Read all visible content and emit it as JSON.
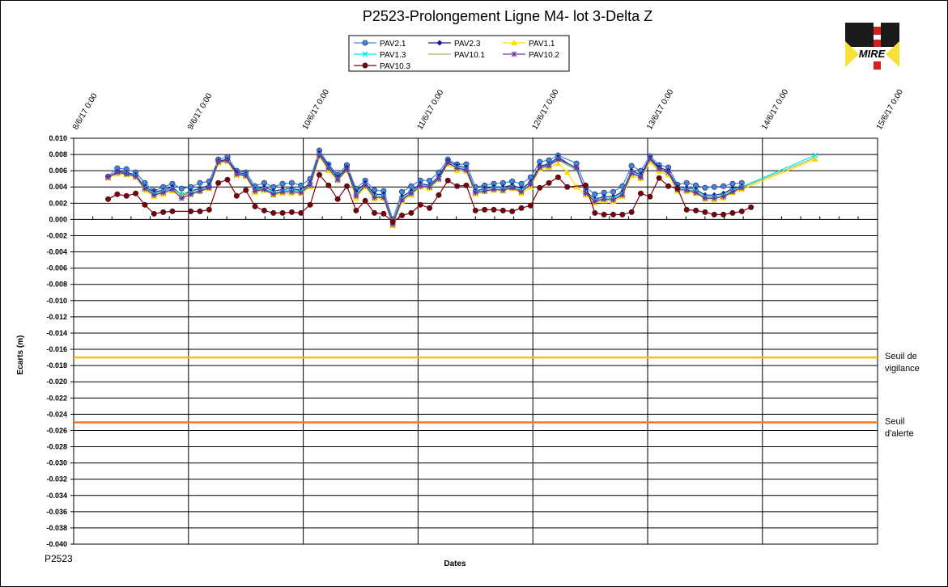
{
  "chart_data": {
    "type": "line",
    "title": "P2523-Prolongement  Ligne  M4- lot 3-Delta Z",
    "xlabel": "Dates",
    "ylabel": "Ecarts (m)",
    "footer_code": "P2523",
    "logo_text": "MIRE",
    "x_ticks": [
      "8/6/17 0:00",
      "9/6/17 0:00",
      "10/6/17 0:00",
      "11/6/17 0:00",
      "12/6/17 0:00",
      "13/6/17 0:00",
      "14/6/17 0:00",
      "15/6/17 0:00"
    ],
    "ylim": [
      -0.04,
      0.01
    ],
    "y_ticks": [
      "0.010",
      "0.008",
      "0.006",
      "0.004",
      "0.002",
      "0.000",
      "-0.002",
      "-0.004",
      "-0.006",
      "-0.008",
      "-0.010",
      "-0.012",
      "-0.014",
      "-0.016",
      "-0.018",
      "-0.020",
      "-0.022",
      "-0.024",
      "-0.026",
      "-0.028",
      "-0.030",
      "-0.032",
      "-0.034",
      "-0.036",
      "-0.038",
      "-0.040"
    ],
    "grid": true,
    "legend_position": "top-center",
    "x_day_offsets": [
      0.3,
      0.38,
      0.46,
      0.54,
      0.62,
      0.7,
      0.78,
      0.86,
      0.94,
      1.02,
      1.1,
      1.18,
      1.26,
      1.34,
      1.42,
      1.5,
      1.58,
      1.66,
      1.74,
      1.82,
      1.9,
      1.98,
      2.06,
      2.14,
      2.22,
      2.3,
      2.38,
      2.46,
      2.54,
      2.62,
      2.7,
      2.78,
      2.86,
      2.94,
      3.02,
      3.1,
      3.18,
      3.26,
      3.34,
      3.42,
      3.5,
      3.58,
      3.66,
      3.74,
      3.82,
      3.9,
      3.98,
      4.06,
      4.14,
      4.22,
      4.3,
      4.38,
      4.46,
      4.54,
      4.62,
      4.7,
      4.78,
      4.86,
      4.94,
      5.02,
      5.1,
      5.18,
      5.26,
      5.34,
      5.42,
      5.5,
      5.58,
      5.66,
      5.74,
      5.82,
      5.9,
      5.98,
      6.06,
      6.14,
      6.22,
      6.3,
      6.38,
      6.46
    ],
    "series": [
      {
        "name": "PAV2.1",
        "color": "#3f86e0",
        "marker": "circle",
        "values": [
          0.0053,
          0.0063,
          0.0062,
          0.0058,
          0.0045,
          0.0035,
          0.004,
          0.0044,
          0.0038,
          0.004,
          0.0045,
          0.0047,
          0.0074,
          0.0077,
          0.006,
          0.0058,
          0.0041,
          0.0045,
          0.004,
          0.0044,
          0.0045,
          0.0042,
          0.005,
          0.0085,
          0.0068,
          0.0055,
          0.0067,
          0.0038,
          0.0048,
          0.0036,
          0.0035,
          0.0,
          0.0034,
          0.0041,
          0.0048,
          0.0048,
          0.0058,
          0.0074,
          0.0068,
          0.0068,
          0.004,
          0.0042,
          0.0044,
          0.0045,
          0.0047,
          0.0044,
          0.0052,
          0.0071,
          0.0073,
          0.0079,
          null,
          0.0069,
          0.004,
          0.0031,
          0.0033,
          0.0034,
          0.0041,
          0.0066,
          0.006,
          0.0078,
          0.0067,
          0.0064,
          0.0043,
          0.0045,
          0.0042,
          0.0039,
          0.004,
          0.0041,
          0.0044,
          0.0045
        ]
      },
      {
        "name": "PAV2.3",
        "color": "#1a1a8c",
        "marker": "diamond",
        "values": [
          0.0052,
          0.0059,
          0.0058,
          0.0055,
          0.004,
          0.0034,
          0.0036,
          0.004,
          0.003,
          0.0035,
          0.0038,
          0.0042,
          0.0072,
          0.0074,
          0.0058,
          0.0056,
          0.0037,
          0.004,
          0.0035,
          0.0037,
          0.0038,
          0.0036,
          0.0045,
          0.0082,
          0.0066,
          0.0052,
          0.0064,
          0.0034,
          0.0045,
          0.0031,
          0.0031,
          -0.0004,
          0.0028,
          0.0035,
          0.0044,
          0.0042,
          0.0053,
          0.0072,
          0.0066,
          0.0064,
          0.0035,
          0.0038,
          0.004,
          0.004,
          0.0042,
          0.0038,
          0.0046,
          0.0066,
          0.0068,
          0.0077,
          null,
          0.0062,
          0.0035,
          0.0025,
          0.0028,
          0.0028,
          0.0034,
          0.006,
          0.0055,
          0.0076,
          0.0064,
          0.006,
          0.004,
          0.0039,
          0.0037,
          0.003,
          0.003,
          0.0032,
          0.0038,
          0.0041
        ]
      },
      {
        "name": "PAV1.1",
        "color": "#ffdd00",
        "marker": "triangle",
        "values": [
          0.0051,
          0.0056,
          0.0055,
          0.0052,
          0.0036,
          0.0028,
          0.0031,
          0.0035,
          0.0028,
          0.0031,
          0.0034,
          0.0038,
          0.0069,
          0.0071,
          0.0054,
          0.0053,
          0.0033,
          0.0036,
          0.003,
          0.0032,
          0.0032,
          0.0032,
          0.004,
          0.0077,
          0.006,
          0.0048,
          0.006,
          0.0026,
          0.004,
          0.0025,
          0.0026,
          -0.0008,
          0.0022,
          0.003,
          0.004,
          0.0038,
          0.0049,
          0.0068,
          0.006,
          0.0059,
          0.0031,
          0.0034,
          0.0036,
          0.0035,
          0.0038,
          0.0032,
          0.004,
          0.0062,
          0.0064,
          0.0069,
          0.0058,
          0.004,
          0.003,
          0.002,
          0.0023,
          0.0022,
          0.0028,
          0.0054,
          0.005,
          0.0071,
          0.0059,
          0.0055,
          0.0035,
          0.0034,
          0.0032,
          0.0025,
          0.0024,
          0.0026,
          0.0033,
          0.0037,
          null,
          null,
          null,
          null,
          null,
          null,
          null,
          0.0074
        ]
      },
      {
        "name": "PAV1.3",
        "color": "#00e5ee",
        "marker": "x",
        "values": [
          0.0052,
          0.0058,
          0.0057,
          0.0054,
          0.0039,
          0.0032,
          0.0035,
          0.0038,
          0.0031,
          0.0033,
          0.0036,
          0.004,
          0.0071,
          0.0073,
          0.0056,
          0.0055,
          0.0036,
          0.0038,
          0.0033,
          0.0035,
          0.0036,
          0.0035,
          0.0043,
          0.008,
          0.0064,
          0.005,
          0.0062,
          0.0031,
          0.0043,
          0.0029,
          0.0029,
          -0.0005,
          0.0026,
          0.0033,
          0.0042,
          0.0041,
          0.0051,
          0.007,
          0.0064,
          0.0062,
          0.0034,
          0.0036,
          0.0038,
          0.0038,
          0.004,
          0.0036,
          0.0044,
          0.0064,
          0.0067,
          0.0075,
          null,
          0.0062,
          0.0034,
          0.0024,
          0.0026,
          0.0026,
          0.0032,
          0.0058,
          0.0053,
          0.0074,
          0.0062,
          0.0058,
          0.0038,
          0.0037,
          0.0035,
          0.0028,
          0.0028,
          0.003,
          0.0036,
          0.004,
          null,
          null,
          null,
          null,
          null,
          null,
          null,
          0.0079
        ]
      },
      {
        "name": "PAV10.1",
        "color": "#9bbb59",
        "marker": "none",
        "values": [
          0.0052,
          0.0057,
          0.0056,
          0.0053,
          0.0038,
          0.0031,
          0.0034,
          0.0037,
          0.003,
          0.0032,
          0.0035,
          0.0039,
          0.007,
          0.0072,
          0.0055,
          0.0054,
          0.0035,
          0.0037,
          0.0032,
          0.0034,
          0.0035,
          0.0034,
          0.0042,
          0.0079,
          0.0063,
          0.0049,
          0.0061,
          0.003,
          0.0042,
          0.0028,
          0.0028,
          -0.0006,
          0.0025,
          0.0032,
          0.0041,
          0.004,
          0.005,
          0.0069,
          0.0063,
          0.0061,
          0.0033,
          0.0035,
          0.0037,
          0.0037,
          0.0039,
          0.0035,
          0.0043,
          0.0063,
          0.0066,
          0.0073,
          null,
          0.0061,
          0.0033,
          0.0023,
          0.0025,
          0.0025,
          0.0031,
          0.0057,
          0.0052,
          0.0073,
          0.0061,
          0.0057,
          0.0037,
          0.0036,
          0.0034,
          0.0027,
          0.0027,
          0.0029,
          0.0035,
          0.0039,
          null,
          null,
          null,
          null,
          null,
          null,
          null,
          0.0076
        ]
      },
      {
        "name": "PAV10.2",
        "color": "#7030a0",
        "marker": "star",
        "values": [
          0.0052,
          0.0058,
          0.0056,
          0.0053,
          0.0038,
          0.003,
          0.0033,
          0.0037,
          0.0026,
          0.0031,
          0.0035,
          0.0039,
          0.0071,
          0.0073,
          0.0056,
          0.0054,
          0.0035,
          0.0037,
          0.0031,
          0.0034,
          0.0034,
          0.0033,
          0.0042,
          0.0079,
          0.0063,
          0.0049,
          0.0062,
          0.0029,
          0.0042,
          0.0027,
          0.0027,
          -0.0006,
          0.0024,
          0.0032,
          0.0041,
          0.004,
          0.005,
          0.007,
          0.0063,
          0.0061,
          0.0033,
          0.0035,
          0.0037,
          0.0036,
          0.0039,
          0.0034,
          0.0043,
          0.0064,
          0.0066,
          0.0074,
          null,
          0.0064,
          0.0032,
          0.0022,
          0.0025,
          0.0024,
          0.003,
          0.0057,
          0.0052,
          0.0075,
          0.0062,
          0.0058,
          0.0037,
          0.0036,
          0.0033,
          0.0026,
          0.0026,
          0.0028,
          0.0034,
          0.0039
        ]
      },
      {
        "name": "PAV10.3",
        "color": "#800000",
        "marker": "circle",
        "values": [
          0.0025,
          0.0031,
          0.0029,
          0.0032,
          0.0018,
          0.0007,
          0.0009,
          0.001,
          null,
          0.001,
          0.001,
          0.0012,
          0.0045,
          0.0049,
          0.0029,
          0.0036,
          0.0016,
          0.0011,
          0.0008,
          0.0008,
          0.0009,
          0.0008,
          0.0018,
          0.0055,
          0.0042,
          0.0025,
          0.0041,
          0.0011,
          0.0023,
          0.0008,
          0.0007,
          -0.0003,
          0.0005,
          0.0008,
          0.0018,
          0.0014,
          0.003,
          0.0048,
          0.0041,
          0.0042,
          0.0011,
          0.0012,
          0.0012,
          0.0011,
          0.001,
          0.0014,
          0.0017,
          0.0039,
          0.0045,
          0.0052,
          0.004,
          null,
          0.0042,
          0.0008,
          0.0006,
          0.0006,
          0.0006,
          0.0009,
          0.0032,
          0.0028,
          0.0051,
          0.0041,
          0.0038,
          0.0012,
          0.0011,
          0.0009,
          0.0006,
          0.0006,
          0.0008,
          0.001,
          0.0015
        ]
      }
    ],
    "thresholds": [
      {
        "label_line1": "Seuil de",
        "label_line2": "vigilance",
        "value": -0.017,
        "color": "#ffc000"
      },
      {
        "label_line1": "Seuil",
        "label_line2": "d'alerte",
        "value": -0.025,
        "color": "#ed7d31"
      }
    ]
  }
}
